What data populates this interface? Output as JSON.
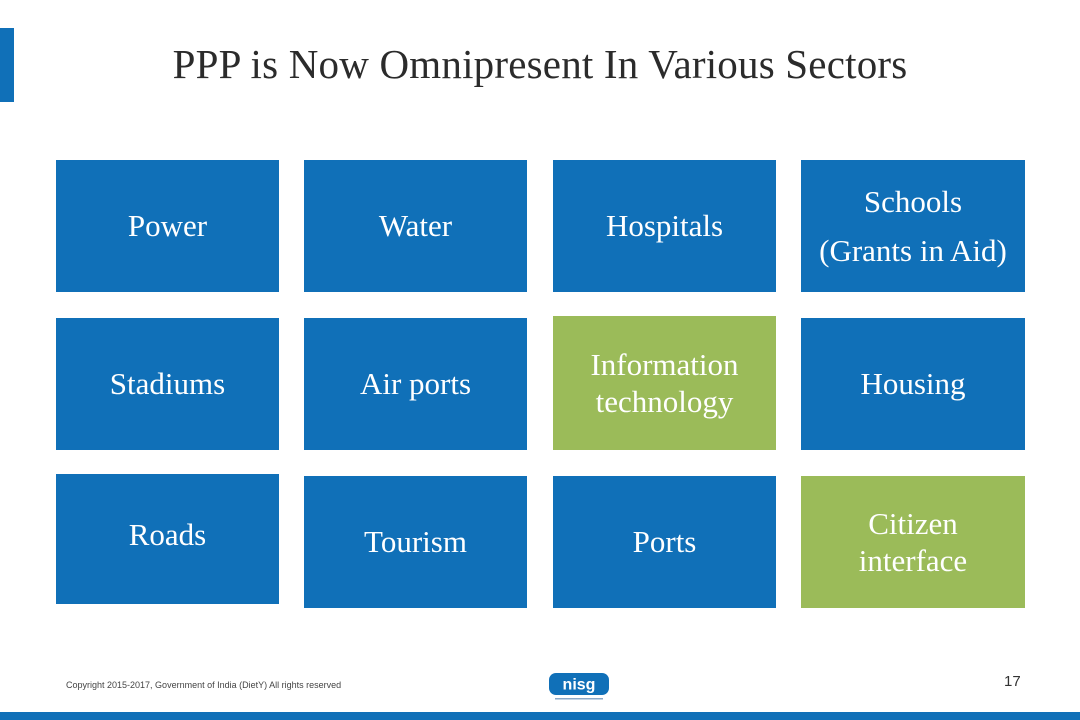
{
  "slide": {
    "title": "PPP is Now Omnipresent In Various Sectors",
    "page_number": "17",
    "copyright": "Copyright 2015-2017, Government of India (DietY) All rights reserved",
    "logo_text": "nisg"
  },
  "colors": {
    "blue": "#1070b8",
    "green": "#9bbb59"
  },
  "sectors": {
    "power": "Power",
    "water": "Water",
    "hospitals": "Hospitals",
    "schools_line1": "Schools",
    "schools_line2": "(Grants in Aid)",
    "stadiums": "Stadiums",
    "airports": "Air ports",
    "it_line1": "Information",
    "it_line2": "technology",
    "housing": "Housing",
    "roads": "Roads",
    "tourism": "Tourism",
    "ports": "Ports",
    "citizen_line1": "Citizen",
    "citizen_line2": "interface"
  }
}
